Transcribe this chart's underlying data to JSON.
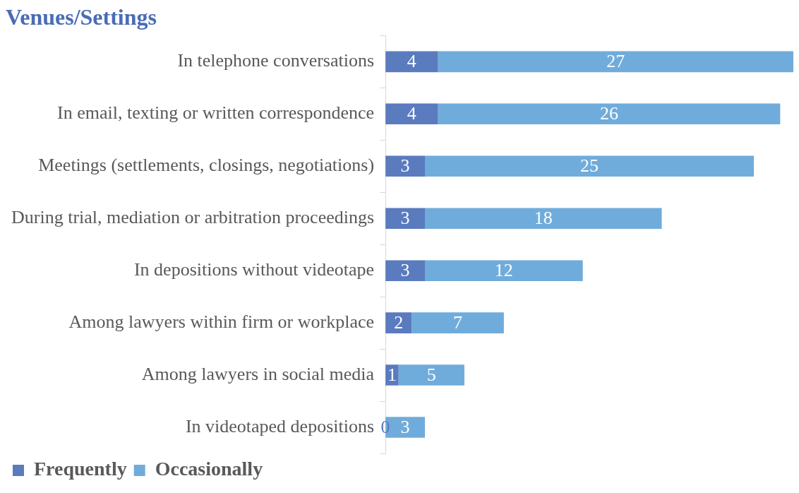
{
  "chart_data": {
    "type": "bar",
    "orientation": "horizontal",
    "stacked": true,
    "title": "Venues/Settings",
    "categories": [
      "In telephone conversations",
      "In email, texting or written correspondence",
      "Meetings (settlements, closings, negotiations)",
      "During trial, mediation or arbitration proceedings",
      "In depositions without videotape",
      "Among lawyers within firm or workplace",
      "Among lawyers in social media",
      "In videotaped depositions"
    ],
    "series": [
      {
        "name": "Frequently",
        "color": "#5b7bbf",
        "values": [
          4,
          4,
          3,
          3,
          3,
          2,
          1,
          0
        ]
      },
      {
        "name": "Occasionally",
        "color": "#70acdb",
        "values": [
          27,
          26,
          25,
          18,
          12,
          7,
          5,
          3
        ]
      }
    ],
    "data_labels": true,
    "legend": "bottom left",
    "grid": false
  }
}
